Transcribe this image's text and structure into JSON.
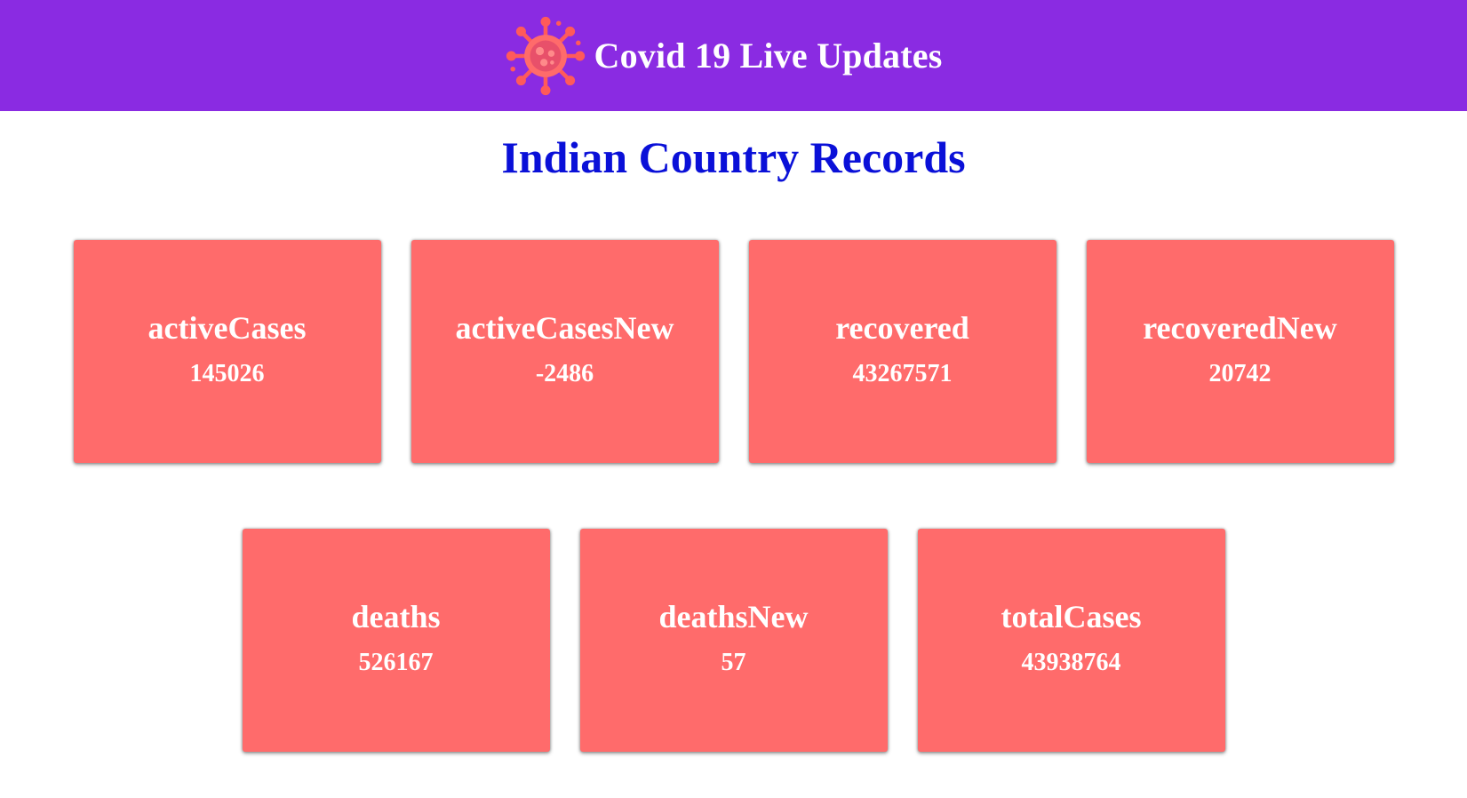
{
  "header": {
    "title": "Covid 19 Live Updates",
    "icon": "virus-icon",
    "background": "#8a2be2"
  },
  "page": {
    "title": "Indian Country Records",
    "title_color": "#0a10d8"
  },
  "cards": [
    {
      "label": "activeCases",
      "value": "145026"
    },
    {
      "label": "activeCasesNew",
      "value": "-2486"
    },
    {
      "label": "recovered",
      "value": "43267571"
    },
    {
      "label": "recoveredNew",
      "value": "20742"
    },
    {
      "label": "deaths",
      "value": "526167"
    },
    {
      "label": "deathsNew",
      "value": "57"
    },
    {
      "label": "totalCases",
      "value": "43938764"
    }
  ],
  "card_color": "#ff6b6b"
}
